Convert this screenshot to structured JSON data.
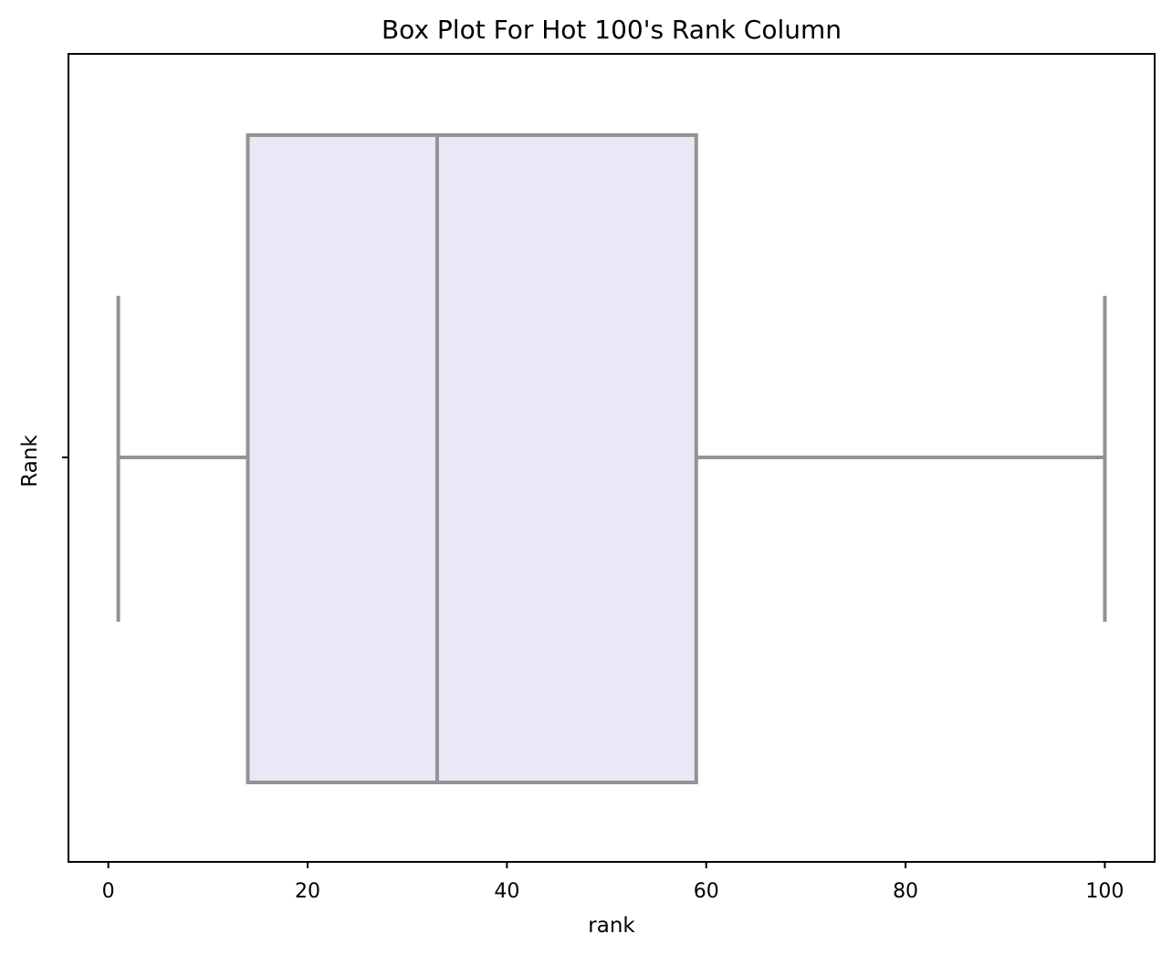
{
  "chart_data": {
    "type": "box",
    "title": "Box Plot For Hot 100's Rank Column",
    "xlabel": "rank",
    "ylabel": "Rank",
    "xlim": [
      -4.0,
      105.0
    ],
    "x_ticks": [
      0,
      20,
      40,
      60,
      80,
      100
    ],
    "box": {
      "min": 1,
      "q1": 14,
      "median": 33,
      "q3": 59,
      "max": 100
    },
    "colors": {
      "box_fill": "#e9e8f6",
      "box_stroke": "#939393"
    },
    "grid": false
  }
}
